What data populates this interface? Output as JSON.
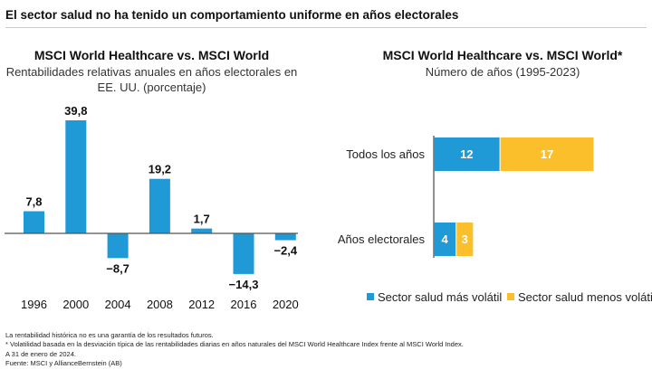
{
  "title": "El sector salud no ha tenido un comportamiento uniforme en años electorales",
  "colors": {
    "blue": "#1f9ad6",
    "yellow": "#fbbf2c",
    "axis": "#555555"
  },
  "chart_data": [
    {
      "type": "bar",
      "title": "MSCI World Healthcare vs. MSCI World",
      "subtitle_line1": "Rentabilidades relativas anuales en años electorales en",
      "subtitle_line2": "EE. UU. (porcentaje)",
      "categories": [
        "1996",
        "2000",
        "2004",
        "2008",
        "2012",
        "2016",
        "2020"
      ],
      "values": [
        7.8,
        39.8,
        -8.7,
        19.2,
        1.7,
        -14.3,
        -2.4
      ],
      "labels": [
        "7,8",
        "39,8",
        "−8,7",
        "19,2",
        "1,7",
        "−14,3",
        "−2,4"
      ],
      "grid": false
    },
    {
      "type": "bar",
      "orientation": "horizontal-stacked",
      "title": "MSCI World Healthcare vs. MSCI World*",
      "subtitle": "Número de años (1995-2023)",
      "categories": [
        "Todos los años",
        "Años electorales"
      ],
      "series": [
        {
          "name": "Sector salud más volátil",
          "values": [
            12,
            4
          ]
        },
        {
          "name": "Sector salud menos volátil",
          "values": [
            17,
            3
          ]
        }
      ],
      "legend": "bottom",
      "grid": false
    }
  ],
  "notes": [
    "La rentabilidad histórica no es una garantía de los resultados futuros.",
    "* Volatilidad basada en la desviación típica de las rentabilidades diarias en años naturales del MSCI World Healthcare Index frente al MSCI World Index.",
    "A 31 de enero de 2024.",
    "Fuente: MSCI y AllianceBernstein (AB)"
  ]
}
